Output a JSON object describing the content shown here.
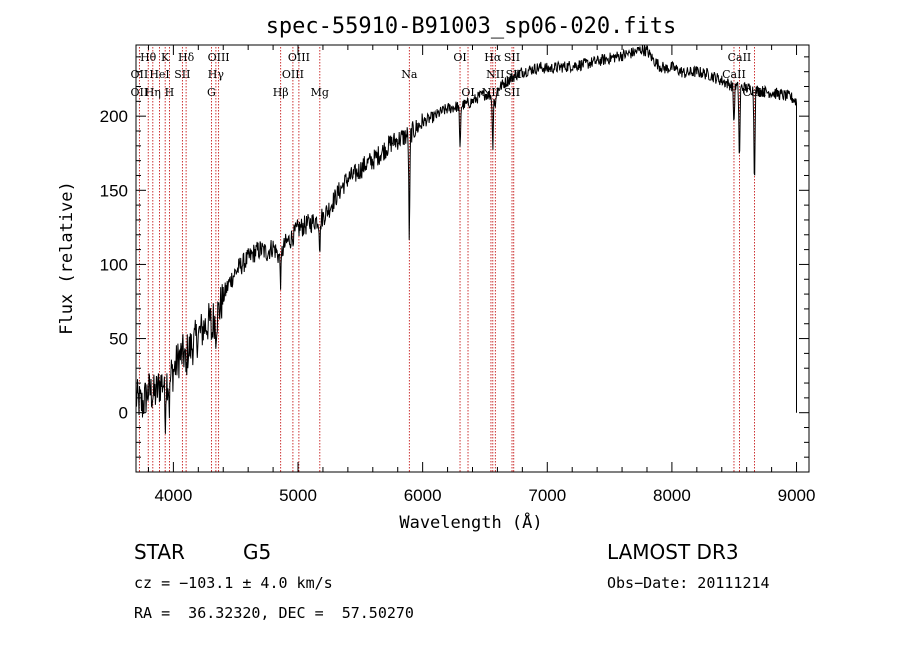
{
  "chart_data": {
    "type": "line",
    "title": "spec-55910-B91003_sp06-020.fits",
    "xlabel": "Wavelength (Å)",
    "ylabel": "Flux (relative)",
    "xlim": [
      3700,
      9100
    ],
    "ylim": [
      -40,
      248
    ],
    "xticks": [
      4000,
      5000,
      6000,
      7000,
      8000,
      9000
    ],
    "yticks": [
      0,
      50,
      100,
      150,
      200
    ],
    "grid": false,
    "spectrum_anchors": [
      [
        3700,
        10
      ],
      [
        3750,
        5
      ],
      [
        3800,
        15
      ],
      [
        3850,
        12
      ],
      [
        3900,
        20
      ],
      [
        3950,
        22
      ],
      [
        4000,
        28
      ],
      [
        4050,
        38
      ],
      [
        4100,
        40
      ],
      [
        4150,
        45
      ],
      [
        4200,
        52
      ],
      [
        4250,
        58
      ],
      [
        4300,
        62
      ],
      [
        4350,
        65
      ],
      [
        4400,
        78
      ],
      [
        4450,
        88
      ],
      [
        4500,
        95
      ],
      [
        4550,
        100
      ],
      [
        4600,
        104
      ],
      [
        4650,
        108
      ],
      [
        4700,
        110
      ],
      [
        4750,
        108
      ],
      [
        4800,
        112
      ],
      [
        4850,
        105
      ],
      [
        4900,
        114
      ],
      [
        4950,
        118
      ],
      [
        5000,
        124
      ],
      [
        5050,
        126
      ],
      [
        5100,
        128
      ],
      [
        5150,
        130
      ],
      [
        5200,
        132
      ],
      [
        5250,
        138
      ],
      [
        5300,
        145
      ],
      [
        5350,
        152
      ],
      [
        5400,
        158
      ],
      [
        5450,
        160
      ],
      [
        5500,
        164
      ],
      [
        5550,
        168
      ],
      [
        5600,
        170
      ],
      [
        5650,
        174
      ],
      [
        5700,
        178
      ],
      [
        5750,
        182
      ],
      [
        5800,
        184
      ],
      [
        5850,
        186
      ],
      [
        5900,
        188
      ],
      [
        5950,
        192
      ],
      [
        6000,
        196
      ],
      [
        6050,
        198
      ],
      [
        6100,
        200
      ],
      [
        6150,
        203
      ],
      [
        6200,
        205
      ],
      [
        6250,
        206
      ],
      [
        6300,
        207
      ],
      [
        6350,
        208
      ],
      [
        6400,
        210
      ],
      [
        6450,
        213
      ],
      [
        6500,
        215
      ],
      [
        6550,
        214
      ],
      [
        6600,
        218
      ],
      [
        6650,
        222
      ],
      [
        6700,
        225
      ],
      [
        6750,
        228
      ],
      [
        6800,
        230
      ],
      [
        6850,
        231
      ],
      [
        6900,
        232
      ],
      [
        6950,
        233
      ],
      [
        7000,
        232
      ],
      [
        7100,
        233
      ],
      [
        7200,
        234
      ],
      [
        7300,
        235
      ],
      [
        7400,
        237
      ],
      [
        7500,
        239
      ],
      [
        7600,
        241
      ],
      [
        7700,
        243
      ],
      [
        7750,
        245
      ],
      [
        7800,
        244
      ],
      [
        7850,
        238
      ],
      [
        7900,
        234
      ],
      [
        7950,
        232
      ],
      [
        8000,
        233
      ],
      [
        8100,
        229
      ],
      [
        8200,
        230
      ],
      [
        8300,
        228
      ],
      [
        8400,
        224
      ],
      [
        8500,
        220
      ],
      [
        8600,
        219
      ],
      [
        8700,
        217
      ],
      [
        8800,
        216
      ],
      [
        8900,
        214
      ],
      [
        8950,
        213
      ],
      [
        9000,
        210
      ]
    ],
    "absorption_features": [
      [
        3934,
        25
      ],
      [
        3968,
        20
      ],
      [
        4101,
        15
      ],
      [
        4308,
        12
      ],
      [
        4340,
        10
      ],
      [
        4861,
        18
      ],
      [
        5175,
        20
      ],
      [
        5893,
        70
      ],
      [
        6300,
        30
      ],
      [
        6563,
        35
      ],
      [
        6583,
        12
      ],
      [
        8498,
        25
      ],
      [
        8542,
        50
      ],
      [
        8662,
        60
      ]
    ],
    "line_labels": [
      {
        "label": "Hθ",
        "wavelength": 3798,
        "row": 1
      },
      {
        "label": "K",
        "wavelength": 3934,
        "row": 1
      },
      {
        "label": "Hδ",
        "wavelength": 4102,
        "row": 1
      },
      {
        "label": "OIII",
        "wavelength": 4363,
        "row": 1
      },
      {
        "label": "OIII",
        "wavelength": 5007,
        "row": 1
      },
      {
        "label": "OI",
        "wavelength": 6300,
        "row": 1
      },
      {
        "label": "Hα",
        "wavelength": 6563,
        "row": 1
      },
      {
        "label": "SII",
        "wavelength": 6717,
        "row": 1
      },
      {
        "label": "CaII",
        "wavelength": 8542,
        "row": 1
      },
      {
        "label": "OII",
        "wavelength": 3727,
        "row": 2
      },
      {
        "label": "HeI",
        "wavelength": 3889,
        "row": 2
      },
      {
        "label": "SII",
        "wavelength": 4072,
        "row": 2
      },
      {
        "label": "Hγ",
        "wavelength": 4341,
        "row": 2
      },
      {
        "label": "OIII",
        "wavelength": 4959,
        "row": 2
      },
      {
        "label": "Na",
        "wavelength": 5893,
        "row": 2
      },
      {
        "label": "NII",
        "wavelength": 6583,
        "row": 2
      },
      {
        "label": "SII",
        "wavelength": 6731,
        "row": 2
      },
      {
        "label": "CaII",
        "wavelength": 8498,
        "row": 2
      },
      {
        "label": "OII",
        "wavelength": 3727,
        "row": 3
      },
      {
        "label": "Hη",
        "wavelength": 3835,
        "row": 3
      },
      {
        "label": "H",
        "wavelength": 3968,
        "row": 3
      },
      {
        "label": "G",
        "wavelength": 4305,
        "row": 3
      },
      {
        "label": "Hβ",
        "wavelength": 4861,
        "row": 3
      },
      {
        "label": "Mg",
        "wavelength": 5175,
        "row": 3
      },
      {
        "label": "OI",
        "wavelength": 6364,
        "row": 3
      },
      {
        "label": "NII",
        "wavelength": 6548,
        "row": 3
      },
      {
        "label": "SII",
        "wavelength": 6717,
        "row": 3
      },
      {
        "label": "CaII",
        "wavelength": 8662,
        "row": 3
      }
    ],
    "marker_lines": [
      3727,
      3798,
      3835,
      3889,
      3934,
      3968,
      4072,
      4102,
      4305,
      4341,
      4363,
      4861,
      4959,
      5007,
      5175,
      5893,
      6300,
      6364,
      6548,
      6563,
      6583,
      6717,
      6731,
      8498,
      8542,
      8662
    ]
  },
  "colors": {
    "spectrum": "#000000",
    "marker_line": "#c00000",
    "axis": "#000000",
    "background": "#ffffff"
  },
  "info": {
    "object_class": "STAR",
    "subclass": "G5",
    "survey": "LAMOST DR3",
    "cz": "cz = −103.1 ± 4.0 km/s",
    "obs_date": "Obs−Date: 20111214",
    "coords": "RA =  36.32320, DEC =  57.50270"
  }
}
